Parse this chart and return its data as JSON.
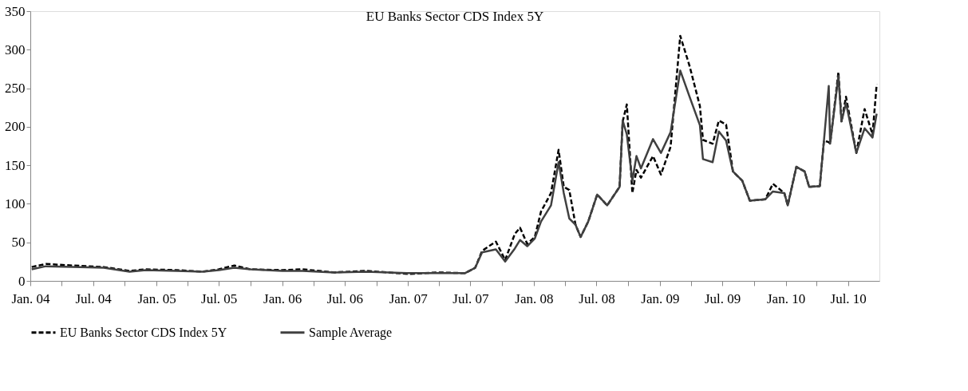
{
  "chart_data": {
    "type": "line",
    "title": "EU Banks Sector CDS Index 5Y",
    "x": [
      "2004-01-05",
      "2004-02-15",
      "2004-05-01",
      "2004-08-01",
      "2004-10-15",
      "2004-12-01",
      "2005-03-01",
      "2005-05-15",
      "2005-07-01",
      "2005-08-15",
      "2005-10-01",
      "2006-01-01",
      "2006-03-01",
      "2006-06-01",
      "2006-09-01",
      "2007-01-01",
      "2007-04-01",
      "2007-06-15",
      "2007-07-15",
      "2007-08-04",
      "2007-09-13",
      "2007-10-10",
      "2007-11-07",
      "2007-11-22",
      "2007-12-13",
      "2008-01-04",
      "2008-01-22",
      "2008-02-20",
      "2008-03-13",
      "2008-03-28",
      "2008-04-13",
      "2008-05-01",
      "2008-05-16",
      "2008-06-07",
      "2008-07-03",
      "2008-08-01",
      "2008-09-06",
      "2008-09-15",
      "2008-09-27",
      "2008-10-13",
      "2008-10-25",
      "2008-11-07",
      "2008-12-12",
      "2009-01-04",
      "2009-02-01",
      "2009-03-01",
      "2009-03-28",
      "2009-04-27",
      "2009-05-06",
      "2009-06-03",
      "2009-06-21",
      "2009-07-12",
      "2009-08-01",
      "2009-08-28",
      "2009-09-19",
      "2009-11-03",
      "2009-11-25",
      "2009-12-28",
      "2010-01-07",
      "2010-02-01",
      "2010-02-25",
      "2010-03-10",
      "2010-04-10",
      "2010-04-22",
      "2010-05-06",
      "2010-05-10",
      "2010-06-03",
      "2010-06-12",
      "2010-06-25",
      "2010-07-25",
      "2010-08-18",
      "2010-09-10",
      "2010-09-22"
    ],
    "series": [
      {
        "name": "EU Banks Sector CDS Index 5Y",
        "color": "#000000",
        "line_style": "dashed",
        "values": [
          18,
          22,
          20,
          18,
          13,
          15,
          14,
          12,
          15,
          20,
          15,
          14,
          15,
          11,
          13,
          9,
          11,
          10,
          17,
          39,
          51,
          27,
          61,
          69,
          48,
          57,
          90,
          114,
          170,
          122,
          118,
          73,
          57,
          77,
          112,
          98,
          122,
          207,
          229,
          114,
          144,
          134,
          162,
          138,
          174,
          318,
          279,
          227,
          183,
          178,
          208,
          203,
          142,
          130,
          104,
          106,
          126,
          114,
          98,
          148,
          142,
          122,
          123,
          182,
          180,
          178,
          271,
          207,
          239,
          166,
          223,
          190,
          255
        ]
      },
      {
        "name": "Sample Average",
        "color": "#404040",
        "line_style": "solid",
        "values": [
          15,
          19,
          18,
          17,
          12,
          14,
          13,
          12,
          14,
          17,
          15,
          13,
          13,
          11,
          12,
          10,
          10,
          10,
          17,
          37,
          41,
          25,
          42,
          53,
          45,
          55,
          77,
          98,
          154,
          114,
          81,
          73,
          57,
          77,
          112,
          98,
          122,
          208,
          190,
          130,
          162,
          146,
          184,
          166,
          193,
          273,
          239,
          202,
          158,
          154,
          194,
          182,
          142,
          130,
          104,
          106,
          116,
          114,
          98,
          148,
          142,
          122,
          123,
          182,
          253,
          178,
          266,
          207,
          231,
          166,
          198,
          186,
          217
        ]
      }
    ],
    "xlim": [
      "2004-01-01",
      "2010-09-30"
    ],
    "xticks": [
      {
        "value": "2004-01-01",
        "label": "Jan. 04"
      },
      {
        "value": "2004-04-01",
        "label": null
      },
      {
        "value": "2004-07-01",
        "label": "Jul. 04"
      },
      {
        "value": "2004-10-01",
        "label": null
      },
      {
        "value": "2005-01-01",
        "label": "Jan. 05"
      },
      {
        "value": "2005-04-01",
        "label": null
      },
      {
        "value": "2005-07-01",
        "label": "Jul. 05"
      },
      {
        "value": "2005-10-01",
        "label": null
      },
      {
        "value": "2006-01-01",
        "label": "Jan. 06"
      },
      {
        "value": "2006-04-01",
        "label": null
      },
      {
        "value": "2006-07-01",
        "label": "Jul. 06"
      },
      {
        "value": "2006-10-01",
        "label": null
      },
      {
        "value": "2007-01-01",
        "label": "Jan. 07"
      },
      {
        "value": "2007-04-01",
        "label": null
      },
      {
        "value": "2007-07-01",
        "label": "Jul. 07"
      },
      {
        "value": "2007-10-01",
        "label": null
      },
      {
        "value": "2008-01-01",
        "label": "Jan. 08"
      },
      {
        "value": "2008-04-01",
        "label": null
      },
      {
        "value": "2008-07-01",
        "label": "Jul. 08"
      },
      {
        "value": "2008-10-01",
        "label": null
      },
      {
        "value": "2009-01-01",
        "label": "Jan. 09"
      },
      {
        "value": "2009-04-01",
        "label": null
      },
      {
        "value": "2009-07-01",
        "label": "Jul. 09"
      },
      {
        "value": "2009-10-01",
        "label": null
      },
      {
        "value": "2010-01-01",
        "label": "Jan. 10"
      },
      {
        "value": "2010-04-01",
        "label": null
      },
      {
        "value": "2010-07-01",
        "label": "Jul. 10"
      }
    ],
    "ylim": [
      0,
      350
    ],
    "yticks": [
      0,
      50,
      100,
      150,
      200,
      250,
      300,
      350
    ],
    "grid": false,
    "legend": "bottom",
    "marker": "none"
  }
}
